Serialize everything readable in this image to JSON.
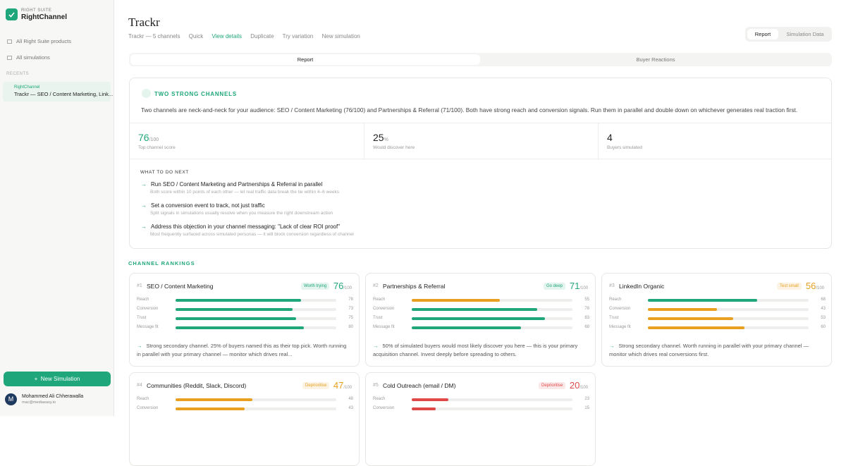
{
  "sidebar": {
    "suite": "RIGHT SUITE",
    "app": "RightChannel",
    "nav": [
      "All Right Suite products",
      "All simulations"
    ],
    "recents_label": "RECENTS",
    "recent": {
      "app": "RightChannel",
      "title": "Trackr — SEO / Content Marketing, Link..."
    },
    "new_button": "New Simulation",
    "user": {
      "initial": "M",
      "name": "Mohammed Ali Chherawalla",
      "email": "mac@mediaeasy.io"
    }
  },
  "header": {
    "title": "Trackr",
    "meta": "Trackr — 5 channels",
    "mode": "Quick",
    "actions": [
      "View details",
      "Duplicate",
      "Try variation",
      "New simulation"
    ],
    "tabs": [
      "Report",
      "Simulation Data"
    ]
  },
  "segments": [
    "Report",
    "Buyer Reactions"
  ],
  "summary": {
    "heading": "TWO STRONG CHANNELS",
    "text": "Two channels are neck-and-neck for your audience: SEO / Content Marketing (76/100) and Partnerships & Referral (71/100). Both have strong reach and conversion signals. Run them in parallel and double down on whichever generates real traction first.",
    "stats": [
      {
        "value": 76,
        "suffix": "/100",
        "label": "Top channel score",
        "color": "#1fa67a"
      },
      {
        "value": 25,
        "suffix": "%",
        "label": "Would discover here",
        "color": "#222222"
      },
      {
        "value": 4,
        "label": "Buyers simulated",
        "color": "#222222"
      }
    ],
    "next_heading": "WHAT TO DO NEXT",
    "next": [
      {
        "title": "Run SEO / Content Marketing and Partnerships & Referral in parallel",
        "detail": "Both score within 10 points of each other — let real traffic data break the tie within 4–6 weeks"
      },
      {
        "title": "Set a conversion event to track, not just traffic",
        "detail": "Split signals in simulations usually resolve when you measure the right downstream action"
      },
      {
        "title": "Address this objection in your channel messaging: \"Lack of clear ROI proof\"",
        "detail": "Most frequently surfaced across simulated personas — it will block conversion regardless of channel"
      }
    ]
  },
  "rankings": {
    "heading": "CHANNEL RANKINGS",
    "metric_range": [
      0,
      100
    ],
    "score_suffix": "/100",
    "channels": [
      {
        "rank": "#1",
        "name": "SEO / Content Marketing",
        "badge": "Worth trying",
        "score": 76,
        "color": "#1fa67a",
        "metrics": [
          {
            "label": "Reach",
            "value": 78,
            "color": "#1fa67a"
          },
          {
            "label": "Conversion",
            "value": 73,
            "color": "#1fa67a"
          },
          {
            "label": "Trust",
            "value": 75,
            "color": "#1fa67a"
          },
          {
            "label": "Message fit",
            "value": 80,
            "color": "#1fa67a"
          }
        ],
        "note": "Strong secondary channel. 25% of buyers named this as their top pick. Worth running in parallel with your primary channel — monitor which drives real..."
      },
      {
        "rank": "#2",
        "name": "Partnerships & Referral",
        "badge": "Go deep",
        "score": 71,
        "color": "#1fa67a",
        "metrics": [
          {
            "label": "Reach",
            "value": 55,
            "color": "#e9a020"
          },
          {
            "label": "Conversion",
            "value": 78,
            "color": "#1fa67a"
          },
          {
            "label": "Trust",
            "value": 83,
            "color": "#1fa67a"
          },
          {
            "label": "Message fit",
            "value": 68,
            "color": "#1fa67a"
          }
        ],
        "note": "50% of simulated buyers would most likely discover you here — this is your primary acquisition channel. Invest deeply before spreading to others."
      },
      {
        "rank": "#3",
        "name": "LinkedIn Organic",
        "badge": "Test small",
        "score": 56,
        "color": "#e9a020",
        "metrics": [
          {
            "label": "Reach",
            "value": 68,
            "color": "#1fa67a"
          },
          {
            "label": "Conversion",
            "value": 43,
            "color": "#e9a020"
          },
          {
            "label": "Trust",
            "value": 53,
            "color": "#e9a020"
          },
          {
            "label": "Message fit",
            "value": 60,
            "color": "#e9a020"
          }
        ],
        "note": "Strong secondary channel. Worth running in parallel with your primary channel — monitor which drives real conversions first."
      },
      {
        "rank": "#4",
        "name": "Communities (Reddit, Slack, Discord)",
        "badge": "Deprioritise",
        "score": 47,
        "color": "#e9a020",
        "metrics": [
          {
            "label": "Reach",
            "value": 48,
            "color": "#e9a020"
          },
          {
            "label": "Conversion",
            "value": 43,
            "color": "#e9a020"
          }
        ]
      },
      {
        "rank": "#5",
        "name": "Cold Outreach (email / DM)",
        "badge": "Deprioritise",
        "score": 20,
        "color": "#e04848",
        "metrics": [
          {
            "label": "Reach",
            "value": 23,
            "color": "#e04848"
          },
          {
            "label": "Conversion",
            "value": 15,
            "color": "#e04848"
          }
        ]
      }
    ]
  }
}
